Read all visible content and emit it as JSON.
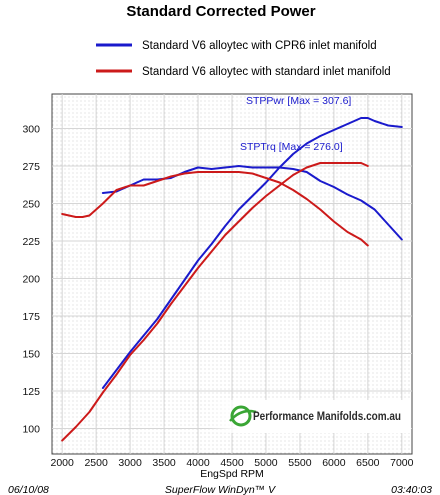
{
  "chart_data": {
    "type": "line",
    "title": "Standard Corrected Power",
    "xlabel": "EngSpd  RPM",
    "ylabel": "",
    "xlim": [
      1850,
      7150
    ],
    "ylim": [
      83,
      323
    ],
    "xticks": [
      2000,
      2500,
      3000,
      3500,
      4000,
      4500,
      5000,
      5500,
      6000,
      6500,
      7000
    ],
    "yticks": [
      100,
      125,
      150,
      175,
      200,
      225,
      250,
      275,
      300
    ],
    "grid": true,
    "legend_placement": "top",
    "series": [
      {
        "name": "Standard V6 alloytec with CPR6 inlet manifold",
        "color": "#1a1acc",
        "curves": [
          {
            "label": "STPPwr [Max = 307.6]",
            "x": [
              2600,
              2800,
              3000,
              3200,
              3400,
              3600,
              3800,
              4000,
              4200,
              4400,
              4600,
              4800,
              5000,
              5200,
              5400,
              5600,
              5800,
              6000,
              6200,
              6400,
              6500,
              6600,
              6800,
              7000
            ],
            "y": [
              127,
              139,
              151,
              162,
              173,
              186,
              199,
              212,
              223,
              235,
              246,
              255,
              264,
              274,
              283,
              290,
              295,
              299,
              303,
              307,
              307,
              305,
              302,
              301
            ]
          },
          {
            "label": "STPTrq [Max = 276.0]",
            "x": [
              2600,
              2800,
              3000,
              3200,
              3400,
              3600,
              3800,
              4000,
              4200,
              4400,
              4600,
              4800,
              5000,
              5200,
              5400,
              5600,
              5800,
              6000,
              6200,
              6400,
              6600,
              6800,
              7000
            ],
            "y": [
              257,
              258,
              262,
              266,
              266,
              267,
              271,
              274,
              273,
              274,
              275,
              274,
              274,
              274,
              273,
              271,
              265,
              261,
              256,
              252,
              246,
              236,
              226
            ]
          }
        ]
      },
      {
        "name": "Standard V6 alloytec with standard inlet manifold",
        "color": "#cc1a1a",
        "curves": [
          {
            "label": "",
            "x": [
              2000,
              2200,
              2400,
              2600,
              2800,
              3000,
              3200,
              3400,
              3600,
              3800,
              4000,
              4200,
              4400,
              4600,
              4800,
              5000,
              5200,
              5400,
              5600,
              5800,
              6000,
              6200,
              6400,
              6500
            ],
            "y": [
              92,
              101,
              111,
              124,
              136,
              149,
              159,
              170,
              183,
              195,
              207,
              218,
              229,
              238,
              247,
              255,
              262,
              269,
              274,
              277,
              277,
              277,
              277,
              275
            ]
          },
          {
            "label": "",
            "x": [
              2000,
              2200,
              2300,
              2400,
              2600,
              2800,
              3000,
              3200,
              3400,
              3600,
              3800,
              4000,
              4200,
              4400,
              4600,
              4800,
              5000,
              5200,
              5400,
              5600,
              5800,
              6000,
              6200,
              6400,
              6500
            ],
            "y": [
              243,
              241,
              241,
              242,
              250,
              259,
              262,
              262,
              265,
              268,
              270,
              271,
              271,
              271,
              271,
              270,
              267,
              264,
              259,
              253,
              246,
              238,
              231,
              226,
              222
            ]
          }
        ]
      }
    ],
    "footer_left": "06/10/08",
    "footer_center": "SuperFlow WinDyn™ V",
    "footer_right": "03:40:03",
    "logo_text": "Performance Manifolds.com.au"
  }
}
